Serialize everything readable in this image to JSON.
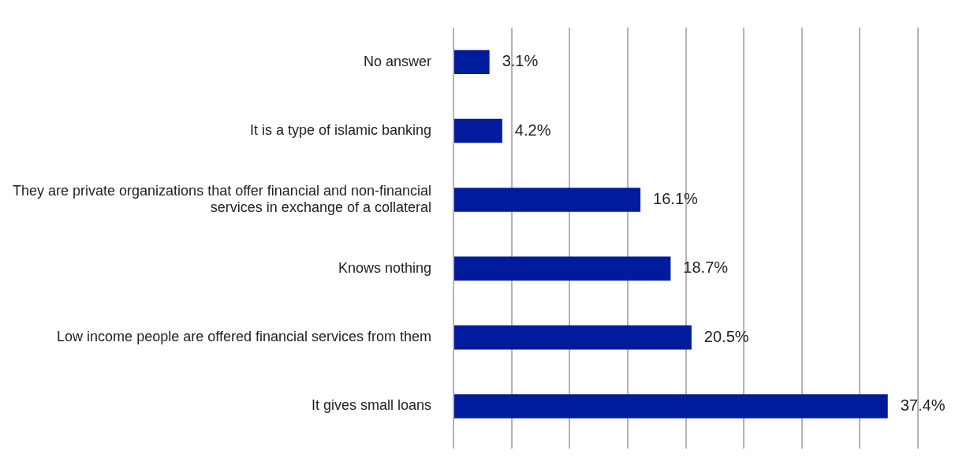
{
  "chart_data": {
    "type": "bar",
    "orientation": "horizontal",
    "categories": [
      "No answer",
      "It is a type of islamic banking",
      "They are private organizations that offer financial and non-financial services in exchange of a collateral",
      "Knows nothing",
      "Low income people are offered financial services from them",
      "It gives small loans"
    ],
    "values": [
      3.1,
      4.2,
      16.1,
      18.7,
      20.5,
      37.4
    ],
    "value_labels": [
      "3.1%",
      "4.2%",
      "16.1%",
      "18.7%",
      "20.5%",
      "37.4%"
    ],
    "color": "#001b9b",
    "xlim": [
      0,
      40
    ],
    "xticks": [
      {
        "value": 0,
        "label": null
      },
      {
        "value": 5,
        "label": null
      },
      {
        "value": 10,
        "label": null
      },
      {
        "value": 15,
        "label": null
      },
      {
        "value": 20,
        "label": null
      },
      {
        "value": 25,
        "label": null
      },
      {
        "value": 30,
        "label": null
      },
      {
        "value": 35,
        "label": null
      },
      {
        "value": 40,
        "label": null
      }
    ],
    "grid": "x",
    "tick_labels": "y",
    "legend": false
  }
}
